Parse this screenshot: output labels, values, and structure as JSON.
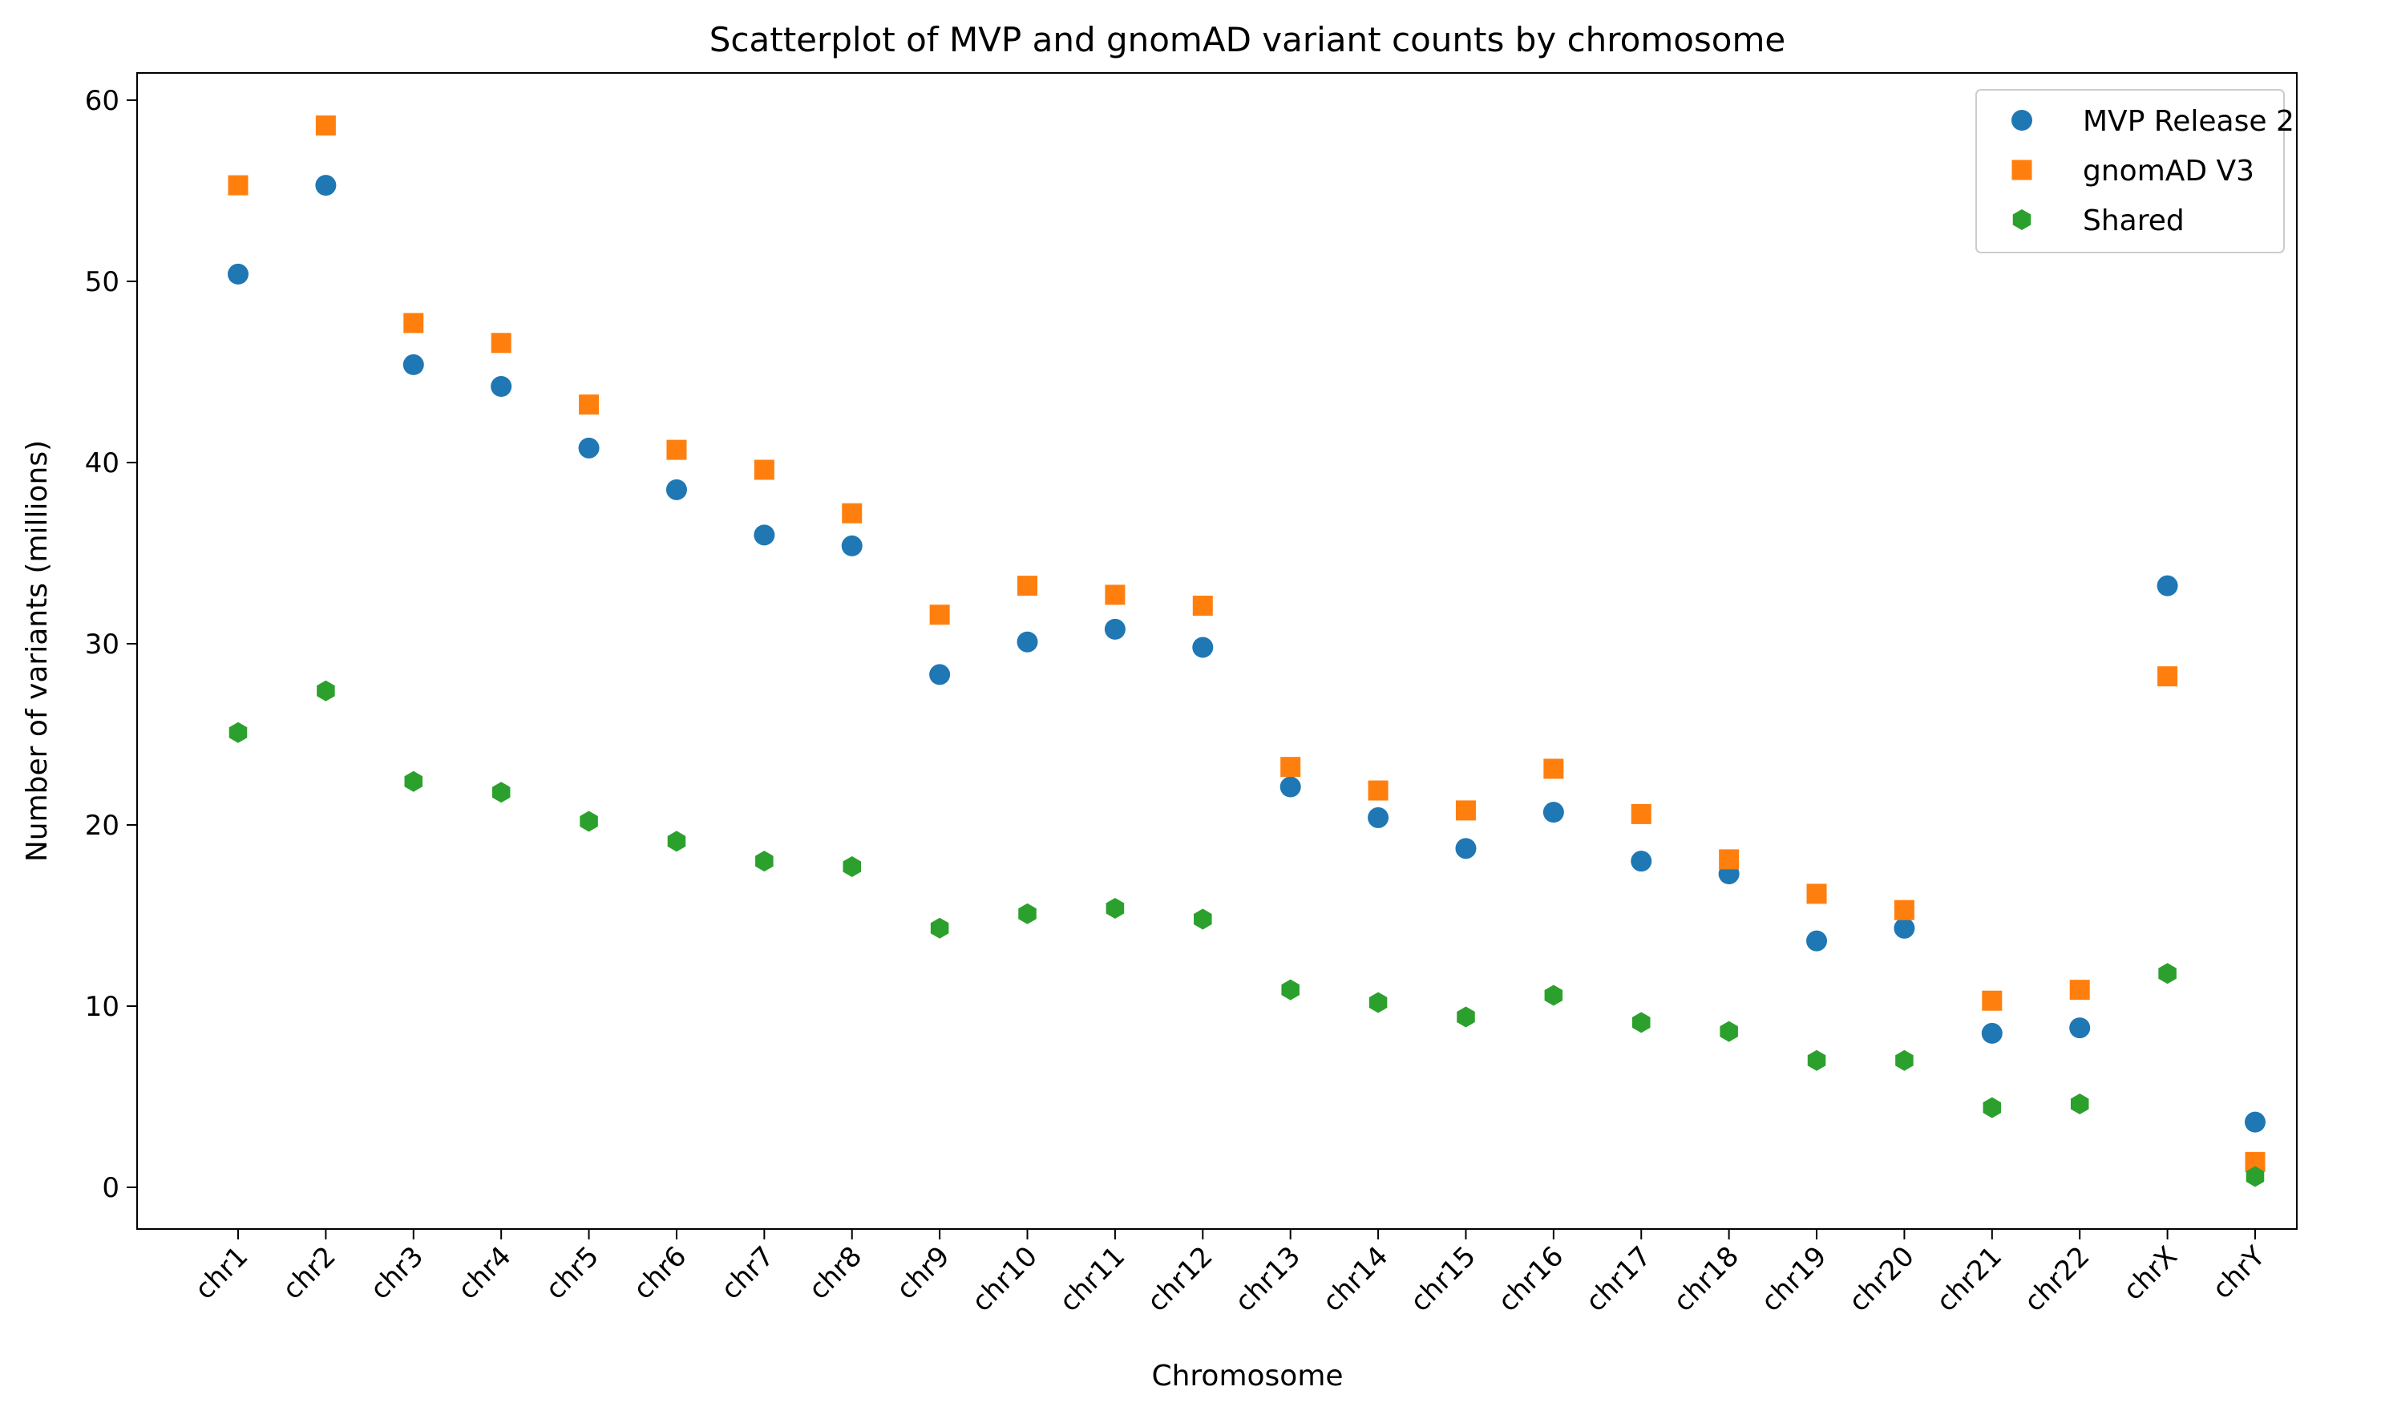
{
  "chart_data": {
    "type": "scatter",
    "title": "Scatterplot of MVP and gnomAD variant counts by chromosome",
    "xlabel": "Chromosome",
    "ylabel": "Number of variants (millions)",
    "categories": [
      "chr1",
      "chr2",
      "chr3",
      "chr4",
      "chr5",
      "chr6",
      "chr7",
      "chr8",
      "chr9",
      "chr10",
      "chr11",
      "chr12",
      "chr13",
      "chr14",
      "chr15",
      "chr16",
      "chr17",
      "chr18",
      "chr19",
      "chr20",
      "chr21",
      "chr22",
      "chrX",
      "chrY"
    ],
    "yticks": [
      0,
      10,
      20,
      30,
      40,
      50,
      60
    ],
    "ylim": [
      -2.3,
      61.5
    ],
    "grid": false,
    "legend_position": "top-right",
    "series": [
      {
        "name": "MVP Release 2",
        "marker": "circle",
        "color": "#1f77b4",
        "values": [
          50.4,
          55.3,
          45.4,
          44.2,
          40.8,
          38.5,
          36.0,
          35.4,
          28.3,
          30.1,
          30.8,
          29.8,
          22.1,
          20.4,
          18.7,
          20.7,
          18.0,
          17.3,
          13.6,
          14.3,
          8.5,
          8.8,
          33.2,
          3.6
        ]
      },
      {
        "name": "gnomAD V3",
        "marker": "square",
        "color": "#ff7f0e",
        "values": [
          55.3,
          58.6,
          47.7,
          46.6,
          43.2,
          40.7,
          39.6,
          37.2,
          31.6,
          33.2,
          32.7,
          32.1,
          23.2,
          21.9,
          20.8,
          23.1,
          20.6,
          18.1,
          16.2,
          15.3,
          10.3,
          10.9,
          28.2,
          1.4
        ]
      },
      {
        "name": "Shared",
        "marker": "hexagon",
        "color": "#2ca02c",
        "values": [
          25.1,
          27.4,
          22.4,
          21.8,
          20.2,
          19.1,
          18.0,
          17.7,
          14.3,
          15.1,
          15.4,
          14.8,
          10.9,
          10.2,
          9.4,
          10.6,
          9.1,
          8.6,
          7.0,
          7.0,
          4.4,
          4.6,
          11.8,
          0.6
        ]
      }
    ]
  }
}
